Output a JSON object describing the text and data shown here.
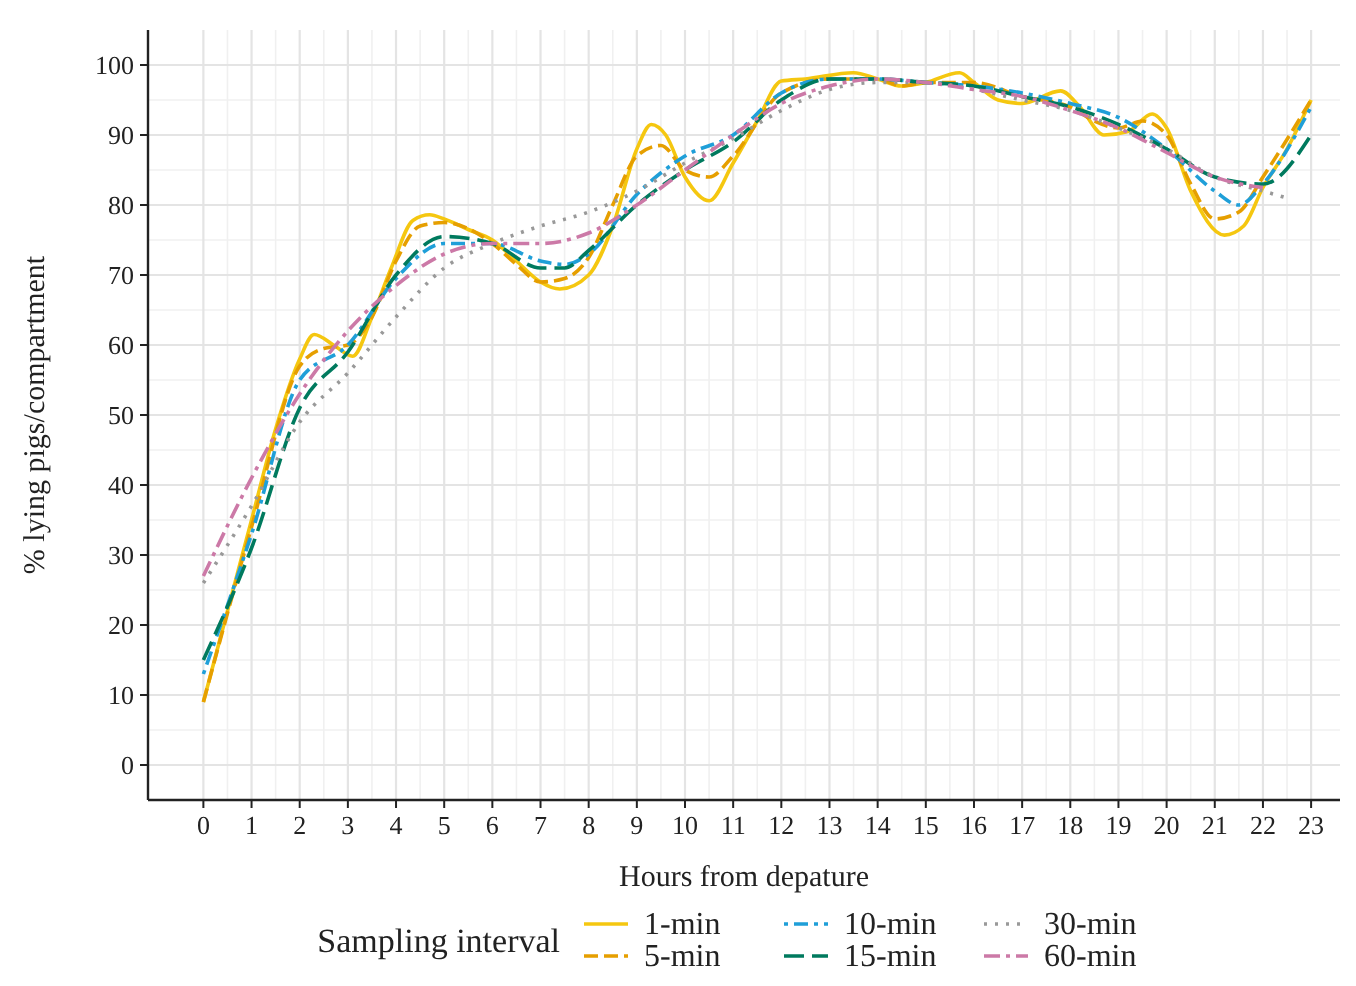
{
  "chart_data": {
    "type": "line",
    "xlabel": "Hours from depature",
    "ylabel": "% lying pigs/compartment",
    "legend_title": "Sampling interval",
    "xlim": [
      -1.15,
      23.6
    ],
    "xticks": [
      0,
      1,
      2,
      3,
      4,
      5,
      6,
      7,
      8,
      9,
      10,
      11,
      12,
      13,
      14,
      15,
      16,
      17,
      18,
      19,
      20,
      21,
      22,
      23
    ],
    "ylim": [
      -5,
      105
    ],
    "yticks": [
      0,
      10,
      20,
      30,
      40,
      50,
      60,
      70,
      80,
      90,
      100
    ],
    "grid": true,
    "legend": "bottom",
    "series": [
      {
        "name": "1-min",
        "color": "#f5c710",
        "line_style": "solid",
        "x": [
          0,
          0.5,
          1,
          1.5,
          2,
          2.3,
          2.7,
          3.1,
          3.5,
          3.9,
          4.35,
          4.7,
          5,
          5.5,
          6,
          6.5,
          7,
          7.4,
          8,
          8.5,
          9,
          9.3,
          9.6,
          10,
          10.5,
          11,
          11.5,
          12,
          12.5,
          13.5,
          14,
          14.5,
          15,
          15.7,
          16,
          16.5,
          17,
          17.8,
          18.2,
          18.7,
          19.2,
          19.7,
          20,
          20.5,
          21.2,
          21.6,
          22,
          22.5,
          23
        ],
        "values": [
          9,
          22,
          35,
          48,
          58,
          61.5,
          60,
          58.4,
          64,
          71,
          77.8,
          78.6,
          78,
          76.5,
          75,
          72,
          69,
          68,
          70,
          77,
          88,
          91.5,
          90,
          84,
          80.6,
          86,
          92,
          97.7,
          98,
          98.9,
          98,
          97,
          97.5,
          98.9,
          97.5,
          95,
          94.5,
          96.3,
          94,
          90,
          90.5,
          93,
          91,
          82,
          75.7,
          77,
          82.5,
          88,
          95
        ]
      },
      {
        "name": "5-min",
        "color": "#e69f00",
        "line_style": "dashed",
        "x": [
          0,
          1,
          2,
          2.5,
          3,
          3.5,
          4,
          4.5,
          5,
          6,
          6.5,
          7,
          7.5,
          8,
          8.5,
          9,
          9.5,
          10,
          10.5,
          11,
          12,
          13,
          14,
          14.5,
          15,
          16,
          17,
          18,
          18.5,
          19,
          19.5,
          20,
          20.5,
          21,
          21.5,
          22,
          23
        ],
        "values": [
          9,
          34,
          57,
          59.5,
          60,
          64,
          72,
          77,
          77.5,
          74.5,
          71.5,
          69,
          69.5,
          72.5,
          80,
          87,
          88.5,
          85,
          84,
          87,
          96,
          98,
          98,
          97,
          97.5,
          97.5,
          95.5,
          94,
          92,
          91,
          92,
          90,
          83,
          78,
          79,
          84,
          95
        ]
      },
      {
        "name": "10-min",
        "color": "#1f9fd8",
        "line_style": "dashed",
        "x": [
          0,
          1,
          2,
          3,
          4,
          5,
          6,
          7,
          7.5,
          8,
          9,
          10,
          11,
          12,
          13,
          14,
          15,
          16,
          17,
          18,
          19,
          20,
          21,
          21.5,
          22,
          23
        ],
        "values": [
          13,
          33,
          55,
          60,
          69.5,
          74.5,
          74.5,
          72,
          71.5,
          73,
          81.5,
          87,
          90,
          96,
          98,
          98,
          97.5,
          97,
          96,
          94.5,
          92.5,
          88,
          82,
          80,
          83,
          94
        ]
      },
      {
        "name": "15-min",
        "color": "#007a5e",
        "line_style": "dashed",
        "x": [
          0,
          1,
          2,
          3,
          4,
          5,
          6,
          7,
          7.5,
          8,
          9,
          10,
          11,
          12,
          13,
          14,
          15,
          16,
          17,
          18,
          19,
          20,
          21,
          22,
          23
        ],
        "values": [
          15,
          31,
          51,
          59,
          70,
          75.5,
          74.5,
          71,
          71,
          73.5,
          80,
          85,
          89,
          95,
          98,
          98,
          97.5,
          97,
          95.5,
          94,
          91.5,
          88,
          84,
          83,
          90
        ]
      },
      {
        "name": "30-min",
        "color": "#999999",
        "line_style": "dotted",
        "x": [
          0,
          1,
          2,
          3,
          4,
          5,
          6,
          7,
          8,
          9,
          10,
          11,
          12,
          13,
          14,
          15,
          16,
          17,
          18,
          19,
          20,
          21,
          22,
          22.5
        ],
        "values": [
          26,
          37,
          49,
          56,
          64,
          71,
          74.5,
          77,
          79,
          82,
          86,
          89.5,
          93.5,
          96.5,
          97.5,
          97.5,
          96.5,
          95,
          93.5,
          91,
          88,
          84,
          82,
          81
        ]
      },
      {
        "name": "60-min",
        "color": "#cc79a7",
        "line_style": "dashed",
        "x": [
          0,
          1,
          2,
          3,
          4,
          5,
          6,
          7,
          8,
          9,
          10,
          11,
          12,
          13,
          14,
          15,
          16,
          17,
          18,
          19,
          20,
          21,
          22
        ],
        "values": [
          27,
          41,
          53,
          62,
          68.5,
          73,
          74.5,
          74.5,
          76,
          80,
          85,
          90,
          94.5,
          97,
          98,
          97.5,
          96.5,
          95.5,
          93.5,
          91,
          87.5,
          84,
          82.5
        ]
      }
    ]
  }
}
